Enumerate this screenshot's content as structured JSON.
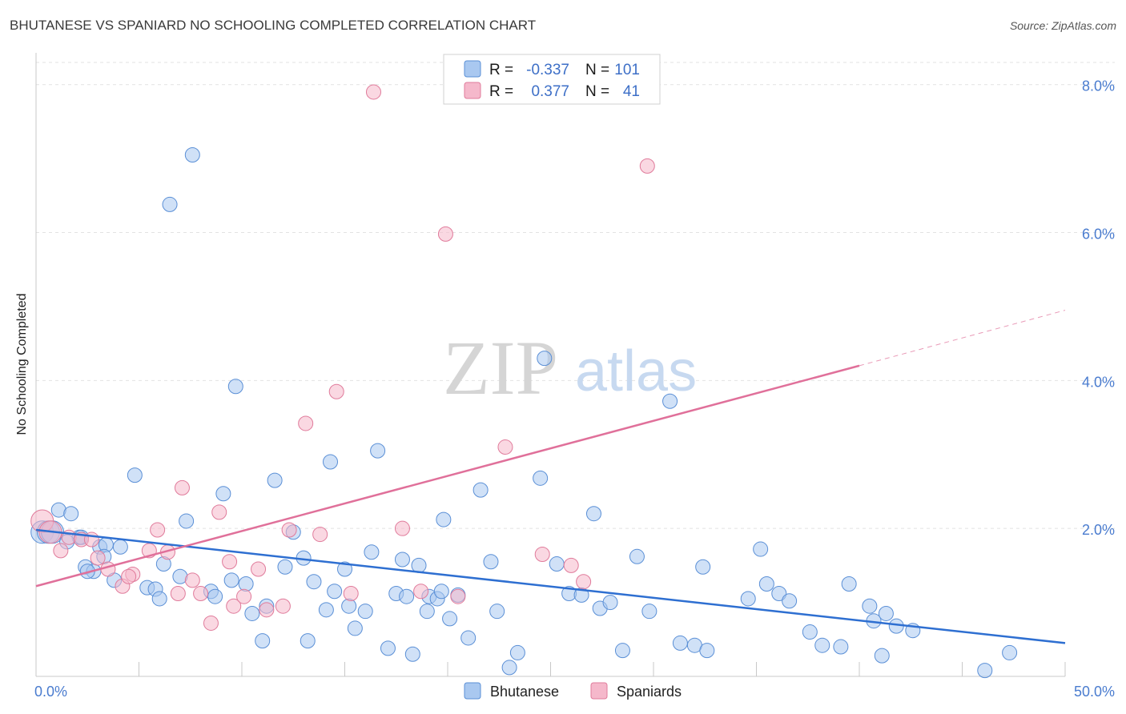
{
  "header": {
    "title": "BHUTANESE VS SPANIARD NO SCHOOLING COMPLETED CORRELATION CHART",
    "source": "Source: ZipAtlas.com"
  },
  "watermark": {
    "zip": "ZIP",
    "atlas": "atlas"
  },
  "legend": {
    "rows": [
      {
        "r_label": "R =",
        "r_value": "-0.337",
        "n_label": "N =",
        "n_value": "101",
        "color": "#a9c8f0"
      },
      {
        "r_label": "R =",
        "r_value": "0.377",
        "n_label": "N =",
        "n_value": "41",
        "color": "#f5b8cb"
      }
    ]
  },
  "bottom_legend": {
    "items": [
      {
        "label": "Bhutanese",
        "color": "#a9c8f0"
      },
      {
        "label": "Spaniards",
        "color": "#f5b8cb"
      }
    ]
  },
  "chart_data": {
    "type": "scatter",
    "title": "BHUTANESE VS SPANIARD NO SCHOOLING COMPLETED CORRELATION CHART",
    "xlabel": "",
    "ylabel": "No Schooling Completed",
    "xlim": [
      0,
      50
    ],
    "ylim": [
      0,
      8.3
    ],
    "x_tick_labels": [
      {
        "value": 0,
        "label": "0.0%"
      },
      {
        "value": 50,
        "label": "50.0%"
      }
    ],
    "y_tick_labels": [
      {
        "value": 2,
        "label": "2.0%"
      },
      {
        "value": 4,
        "label": "4.0%"
      },
      {
        "value": 6,
        "label": "6.0%"
      },
      {
        "value": 8,
        "label": "8.0%"
      }
    ],
    "grid": true,
    "legend_position": "top-center",
    "series": [
      {
        "name": "Bhutanese",
        "color": "#a9c8f0",
        "stroke": "#5a8fd6",
        "points": [
          [
            0.3,
            1.95
          ],
          [
            0.6,
            1.95
          ],
          [
            0.8,
            1.95
          ],
          [
            1.1,
            2.25
          ],
          [
            1.7,
            2.2
          ],
          [
            2.1,
            1.88
          ],
          [
            1.5,
            1.82
          ],
          [
            3.1,
            1.75
          ],
          [
            3.4,
            1.78
          ],
          [
            2.4,
            1.48
          ],
          [
            3.3,
            1.62
          ],
          [
            2.8,
            1.42
          ],
          [
            2.5,
            1.42
          ],
          [
            4.8,
            2.72
          ],
          [
            7.6,
            7.05
          ],
          [
            6.5,
            6.38
          ],
          [
            9.7,
            3.92
          ],
          [
            11.6,
            2.65
          ],
          [
            9.1,
            2.47
          ],
          [
            7.3,
            2.1
          ],
          [
            7.0,
            1.35
          ],
          [
            6.2,
            1.52
          ],
          [
            5.4,
            1.2
          ],
          [
            5.8,
            1.18
          ],
          [
            6.0,
            1.05
          ],
          [
            8.5,
            1.15
          ],
          [
            8.7,
            1.08
          ],
          [
            9.5,
            1.3
          ],
          [
            10.2,
            1.25
          ],
          [
            10.5,
            0.85
          ],
          [
            11.2,
            0.95
          ],
          [
            11.0,
            0.48
          ],
          [
            12.1,
            1.48
          ],
          [
            12.5,
            1.95
          ],
          [
            13.0,
            1.6
          ],
          [
            13.5,
            1.28
          ],
          [
            14.3,
            2.9
          ],
          [
            14.5,
            1.15
          ],
          [
            15.0,
            1.45
          ],
          [
            15.2,
            0.95
          ],
          [
            15.5,
            0.65
          ],
          [
            16.0,
            0.88
          ],
          [
            16.3,
            1.68
          ],
          [
            16.6,
            3.05
          ],
          [
            17.1,
            0.38
          ],
          [
            17.5,
            1.12
          ],
          [
            17.8,
            1.58
          ],
          [
            18.0,
            1.08
          ],
          [
            18.3,
            0.3
          ],
          [
            18.6,
            1.5
          ],
          [
            19.1,
            1.08
          ],
          [
            19.5,
            1.05
          ],
          [
            19.8,
            2.12
          ],
          [
            19.7,
            1.15
          ],
          [
            20.1,
            0.78
          ],
          [
            20.5,
            1.1
          ],
          [
            21.0,
            0.52
          ],
          [
            21.6,
            2.52
          ],
          [
            22.1,
            1.55
          ],
          [
            22.4,
            0.88
          ],
          [
            23.0,
            0.12
          ],
          [
            23.4,
            0.32
          ],
          [
            24.7,
            4.3
          ],
          [
            24.5,
            2.68
          ],
          [
            25.3,
            1.52
          ],
          [
            25.9,
            1.12
          ],
          [
            27.1,
            2.2
          ],
          [
            27.4,
            0.92
          ],
          [
            27.9,
            1.0
          ],
          [
            28.5,
            0.35
          ],
          [
            29.2,
            1.62
          ],
          [
            29.8,
            0.88
          ],
          [
            30.8,
            3.72
          ],
          [
            31.3,
            0.45
          ],
          [
            32.0,
            0.42
          ],
          [
            32.4,
            1.48
          ],
          [
            32.6,
            0.35
          ],
          [
            34.6,
            1.05
          ],
          [
            35.2,
            1.72
          ],
          [
            35.5,
            1.25
          ],
          [
            36.1,
            1.12
          ],
          [
            36.6,
            1.02
          ],
          [
            37.6,
            0.6
          ],
          [
            38.2,
            0.42
          ],
          [
            39.1,
            0.4
          ],
          [
            39.5,
            1.25
          ],
          [
            40.5,
            0.95
          ],
          [
            40.7,
            0.75
          ],
          [
            41.1,
            0.28
          ],
          [
            41.3,
            0.85
          ],
          [
            41.8,
            0.68
          ],
          [
            42.6,
            0.62
          ],
          [
            46.1,
            0.08
          ],
          [
            47.3,
            0.32
          ],
          [
            2.2,
            1.88
          ],
          [
            3.8,
            1.3
          ],
          [
            4.1,
            1.75
          ],
          [
            13.2,
            0.48
          ],
          [
            26.5,
            1.1
          ],
          [
            19.0,
            0.88
          ],
          [
            14.1,
            0.9
          ]
        ]
      },
      {
        "name": "Spaniards",
        "color": "#f5b8cb",
        "stroke": "#e07b9b",
        "points": [
          [
            0.3,
            2.1
          ],
          [
            0.7,
            1.95
          ],
          [
            1.2,
            1.7
          ],
          [
            1.6,
            1.88
          ],
          [
            2.2,
            1.85
          ],
          [
            2.7,
            1.85
          ],
          [
            3.0,
            1.6
          ],
          [
            3.5,
            1.45
          ],
          [
            4.2,
            1.22
          ],
          [
            4.7,
            1.38
          ],
          [
            5.5,
            1.7
          ],
          [
            5.9,
            1.98
          ],
          [
            6.4,
            1.68
          ],
          [
            6.9,
            1.12
          ],
          [
            7.1,
            2.55
          ],
          [
            7.6,
            1.3
          ],
          [
            8.0,
            1.12
          ],
          [
            8.5,
            0.72
          ],
          [
            8.9,
            2.22
          ],
          [
            9.4,
            1.55
          ],
          [
            9.6,
            0.95
          ],
          [
            10.1,
            1.08
          ],
          [
            10.8,
            1.45
          ],
          [
            11.2,
            0.9
          ],
          [
            12.0,
            0.95
          ],
          [
            12.3,
            1.98
          ],
          [
            13.1,
            3.42
          ],
          [
            13.8,
            1.92
          ],
          [
            14.6,
            3.85
          ],
          [
            15.3,
            1.12
          ],
          [
            16.4,
            7.9
          ],
          [
            17.8,
            2.0
          ],
          [
            18.7,
            1.15
          ],
          [
            19.9,
            5.98
          ],
          [
            20.5,
            1.08
          ],
          [
            22.8,
            3.1
          ],
          [
            24.6,
            1.65
          ],
          [
            26.0,
            1.5
          ],
          [
            26.6,
            1.28
          ],
          [
            29.7,
            6.9
          ],
          [
            4.5,
            1.35
          ]
        ]
      }
    ],
    "trendlines": [
      {
        "series": "Bhutanese",
        "x": [
          0,
          50
        ],
        "y": [
          1.98,
          0.45
        ],
        "color": "#2e6fd1"
      },
      {
        "series": "Spaniards",
        "x": [
          0,
          40
        ],
        "y": [
          1.22,
          4.2
        ],
        "color": "#e0709a"
      },
      {
        "series": "Spaniards",
        "x": [
          40,
          50
        ],
        "y": [
          4.2,
          4.95
        ],
        "color": "#e99ab7",
        "dashed": true
      }
    ]
  }
}
